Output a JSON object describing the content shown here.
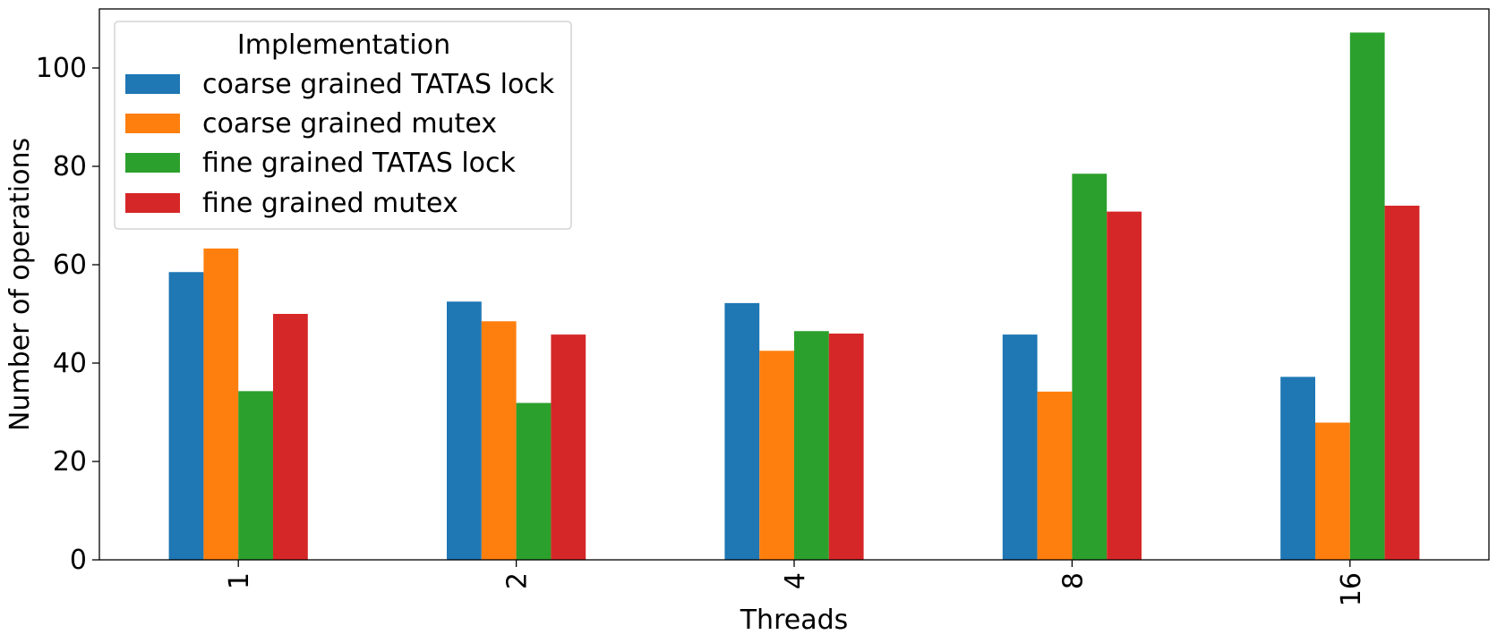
{
  "chart_data": {
    "type": "bar",
    "title": "",
    "xlabel": "Threads",
    "ylabel": "Number of operations",
    "categories": [
      "1",
      "2",
      "4",
      "8",
      "16"
    ],
    "ylim": [
      0,
      112
    ],
    "yticks": [
      0,
      20,
      40,
      60,
      80,
      100
    ],
    "grid": false,
    "legend": {
      "title": "Implementation",
      "placement": "top-left"
    },
    "series": [
      {
        "name": "coarse grained TATAS lock",
        "color": "#1f77b4",
        "values": [
          58.5,
          52.5,
          52.2,
          45.8,
          37.2
        ]
      },
      {
        "name": "coarse grained mutex",
        "color": "#ff7f0e",
        "values": [
          63.3,
          48.5,
          42.5,
          34.2,
          27.9
        ]
      },
      {
        "name": "fine grained TATAS lock",
        "color": "#2ca02c",
        "values": [
          34.3,
          31.9,
          46.5,
          78.5,
          107.2
        ]
      },
      {
        "name": "fine grained mutex",
        "color": "#d62728",
        "values": [
          50.0,
          45.8,
          46.0,
          70.8,
          72.0
        ]
      }
    ]
  }
}
